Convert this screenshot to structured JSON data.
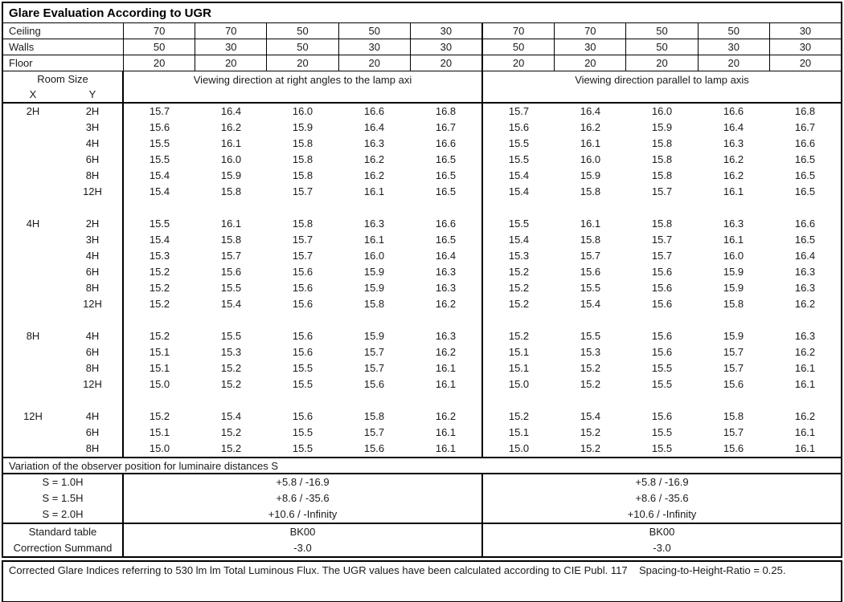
{
  "title": "Glare Evaluation According to UGR",
  "surface_rows": [
    {
      "label": "Ceiling",
      "values": [
        "70",
        "70",
        "50",
        "50",
        "30",
        "70",
        "70",
        "50",
        "50",
        "30"
      ]
    },
    {
      "label": "Walls",
      "values": [
        "50",
        "30",
        "50",
        "30",
        "30",
        "50",
        "30",
        "50",
        "30",
        "30"
      ]
    },
    {
      "label": "Floor",
      "values": [
        "20",
        "20",
        "20",
        "20",
        "20",
        "20",
        "20",
        "20",
        "20",
        "20"
      ]
    }
  ],
  "header": {
    "room_size_label": "Room Size",
    "x_label": "X",
    "y_label": "Y",
    "left_heading": "Viewing direction at right angles to the lamp axi",
    "right_heading": "Viewing direction parallel to lamp axis"
  },
  "body_sections": [
    {
      "x": "2H",
      "rows": [
        {
          "y": "2H",
          "left": [
            "15.7",
            "16.4",
            "16.0",
            "16.6",
            "16.8"
          ],
          "right": [
            "15.7",
            "16.4",
            "16.0",
            "16.6",
            "16.8"
          ]
        },
        {
          "y": "3H",
          "left": [
            "15.6",
            "16.2",
            "15.9",
            "16.4",
            "16.7"
          ],
          "right": [
            "15.6",
            "16.2",
            "15.9",
            "16.4",
            "16.7"
          ]
        },
        {
          "y": "4H",
          "left": [
            "15.5",
            "16.1",
            "15.8",
            "16.3",
            "16.6"
          ],
          "right": [
            "15.5",
            "16.1",
            "15.8",
            "16.3",
            "16.6"
          ]
        },
        {
          "y": "6H",
          "left": [
            "15.5",
            "16.0",
            "15.8",
            "16.2",
            "16.5"
          ],
          "right": [
            "15.5",
            "16.0",
            "15.8",
            "16.2",
            "16.5"
          ]
        },
        {
          "y": "8H",
          "left": [
            "15.4",
            "15.9",
            "15.8",
            "16.2",
            "16.5"
          ],
          "right": [
            "15.4",
            "15.9",
            "15.8",
            "16.2",
            "16.5"
          ]
        },
        {
          "y": "12H",
          "left": [
            "15.4",
            "15.8",
            "15.7",
            "16.1",
            "16.5"
          ],
          "right": [
            "15.4",
            "15.8",
            "15.7",
            "16.1",
            "16.5"
          ]
        }
      ]
    },
    {
      "x": "4H",
      "rows": [
        {
          "y": "2H",
          "left": [
            "15.5",
            "16.1",
            "15.8",
            "16.3",
            "16.6"
          ],
          "right": [
            "15.5",
            "16.1",
            "15.8",
            "16.3",
            "16.6"
          ]
        },
        {
          "y": "3H",
          "left": [
            "15.4",
            "15.8",
            "15.7",
            "16.1",
            "16.5"
          ],
          "right": [
            "15.4",
            "15.8",
            "15.7",
            "16.1",
            "16.5"
          ]
        },
        {
          "y": "4H",
          "left": [
            "15.3",
            "15.7",
            "15.7",
            "16.0",
            "16.4"
          ],
          "right": [
            "15.3",
            "15.7",
            "15.7",
            "16.0",
            "16.4"
          ]
        },
        {
          "y": "6H",
          "left": [
            "15.2",
            "15.6",
            "15.6",
            "15.9",
            "16.3"
          ],
          "right": [
            "15.2",
            "15.6",
            "15.6",
            "15.9",
            "16.3"
          ]
        },
        {
          "y": "8H",
          "left": [
            "15.2",
            "15.5",
            "15.6",
            "15.9",
            "16.3"
          ],
          "right": [
            "15.2",
            "15.5",
            "15.6",
            "15.9",
            "16.3"
          ]
        },
        {
          "y": "12H",
          "left": [
            "15.2",
            "15.4",
            "15.6",
            "15.8",
            "16.2"
          ],
          "right": [
            "15.2",
            "15.4",
            "15.6",
            "15.8",
            "16.2"
          ]
        }
      ]
    },
    {
      "x": "8H",
      "rows": [
        {
          "y": "4H",
          "left": [
            "15.2",
            "15.5",
            "15.6",
            "15.9",
            "16.3"
          ],
          "right": [
            "15.2",
            "15.5",
            "15.6",
            "15.9",
            "16.3"
          ]
        },
        {
          "y": "6H",
          "left": [
            "15.1",
            "15.3",
            "15.6",
            "15.7",
            "16.2"
          ],
          "right": [
            "15.1",
            "15.3",
            "15.6",
            "15.7",
            "16.2"
          ]
        },
        {
          "y": "8H",
          "left": [
            "15.1",
            "15.2",
            "15.5",
            "15.7",
            "16.1"
          ],
          "right": [
            "15.1",
            "15.2",
            "15.5",
            "15.7",
            "16.1"
          ]
        },
        {
          "y": "12H",
          "left": [
            "15.0",
            "15.2",
            "15.5",
            "15.6",
            "16.1"
          ],
          "right": [
            "15.0",
            "15.2",
            "15.5",
            "15.6",
            "16.1"
          ]
        }
      ]
    },
    {
      "x": "12H",
      "rows": [
        {
          "y": "4H",
          "left": [
            "15.2",
            "15.4",
            "15.6",
            "15.8",
            "16.2"
          ],
          "right": [
            "15.2",
            "15.4",
            "15.6",
            "15.8",
            "16.2"
          ]
        },
        {
          "y": "6H",
          "left": [
            "15.1",
            "15.2",
            "15.5",
            "15.7",
            "16.1"
          ],
          "right": [
            "15.1",
            "15.2",
            "15.5",
            "15.7",
            "16.1"
          ]
        },
        {
          "y": "8H",
          "left": [
            "15.0",
            "15.2",
            "15.5",
            "15.6",
            "16.1"
          ],
          "right": [
            "15.0",
            "15.2",
            "15.5",
            "15.6",
            "16.1"
          ]
        }
      ]
    }
  ],
  "variation": {
    "heading": "Variation of the observer position for luminaire distances S",
    "rows": [
      {
        "label": "S = 1.0H",
        "left": "+5.8 / -16.9",
        "right": "+5.8 / -16.9"
      },
      {
        "label": "S = 1.5H",
        "left": "+8.6 / -35.6",
        "right": "+8.6 / -35.6"
      },
      {
        "label": "S = 2.0H",
        "left": "+10.6 / -Infinity",
        "right": "+10.6 / -Infinity"
      }
    ]
  },
  "summary_rows": [
    {
      "label": "Standard table",
      "left": "BK00",
      "right": "BK00"
    },
    {
      "label": "Correction Summand",
      "left": "-3.0",
      "right": "-3.0"
    }
  ],
  "footer": "Corrected Glare Indices referring to 530 lm lm Total Luminous Flux. The UGR values have been calculated according to CIE Publ. 117    Spacing-to-Height-Ratio = 0.25."
}
